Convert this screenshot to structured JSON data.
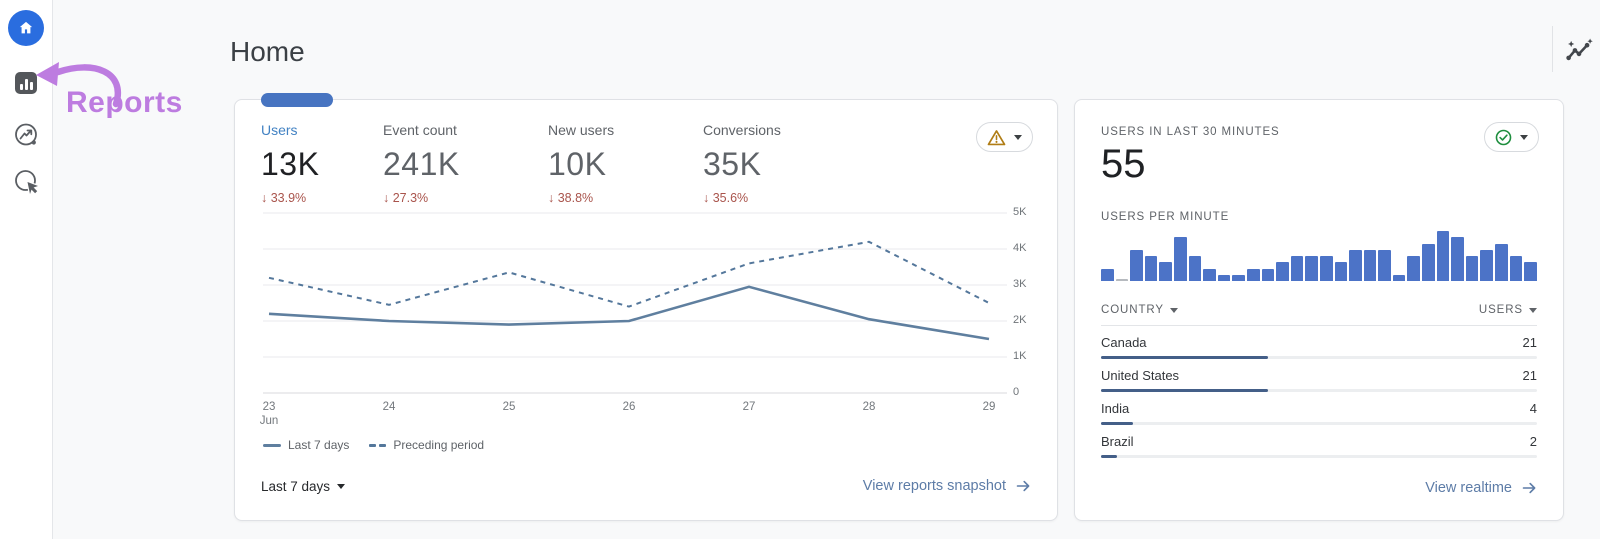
{
  "page": {
    "title": "Home"
  },
  "annotation": {
    "label": "Reports",
    "color": "#bd7ce0",
    "arrow_icon": "curved-arrow-icon"
  },
  "sidebar": {
    "items": [
      {
        "icon": "home-icon",
        "selected": true
      },
      {
        "icon": "reports-bar-chart-icon",
        "selected": false
      },
      {
        "icon": "explore-icon",
        "selected": false
      },
      {
        "icon": "advertising-icon",
        "selected": false
      }
    ]
  },
  "header": {
    "insights_icon": "insights-sparkline-icon"
  },
  "overview_card": {
    "metrics": [
      {
        "label": "Users",
        "value": "13K",
        "delta": "33.9%",
        "direction": "down",
        "selected": true
      },
      {
        "label": "Event count",
        "value": "241K",
        "delta": "27.3%",
        "direction": "down",
        "selected": false
      },
      {
        "label": "New users",
        "value": "10K",
        "delta": "38.8%",
        "direction": "down",
        "selected": false
      },
      {
        "label": "Conversions",
        "value": "35K",
        "delta": "35.6%",
        "direction": "down",
        "selected": false
      }
    ],
    "status_pill": {
      "icon": "warning-triangle-icon",
      "color": "#b07d15"
    },
    "legend": [
      {
        "label": "Last 7 days",
        "style": "solid"
      },
      {
        "label": "Preceding period",
        "style": "dashed"
      }
    ],
    "date_range_label": "Last 7 days",
    "link_label": "View reports snapshot",
    "link_icon": "arrow-forward-icon"
  },
  "realtime_card": {
    "title": "USERS IN LAST 30 MINUTES",
    "value": "55",
    "status_pill": {
      "icon": "check-circle-icon",
      "color": "#1e8e3e"
    },
    "bar_section_title": "USERS PER MINUTE",
    "table": {
      "columns": [
        "COUNTRY",
        "USERS"
      ],
      "rows": [
        {
          "country": "Canada",
          "users": 21
        },
        {
          "country": "United States",
          "users": 21
        },
        {
          "country": "India",
          "users": 4
        },
        {
          "country": "Brazil",
          "users": 2
        }
      ]
    },
    "link_label": "View realtime",
    "link_icon": "arrow-forward-icon"
  },
  "chart_data": [
    {
      "id": "users-trend",
      "type": "line",
      "title": "Users trend (last 7 days vs preceding period)",
      "x": [
        "23",
        "24",
        "25",
        "26",
        "27",
        "28",
        "29"
      ],
      "x_sublabel": "Jun",
      "series": [
        {
          "name": "Last 7 days",
          "style": "solid",
          "values": [
            2200,
            2000,
            1900,
            2000,
            2950,
            2050,
            1500
          ]
        },
        {
          "name": "Preceding period",
          "style": "dashed",
          "values": [
            3200,
            2450,
            3350,
            2400,
            3600,
            4200,
            2500
          ]
        }
      ],
      "ylim": [
        0,
        5000
      ],
      "yticks": [
        5000,
        4000,
        3000,
        2000,
        1000,
        0
      ],
      "ytick_labels": [
        "5K",
        "4K",
        "3K",
        "2K",
        "1K",
        "0"
      ],
      "grid": true,
      "legend_position": "bottom",
      "line_colors": {
        "solid": "#5f7f9f",
        "dashed": "#54779b"
      }
    },
    {
      "id": "users-per-minute",
      "type": "bar",
      "title": "Users per minute (last 30 minutes)",
      "values": [
        2,
        0,
        5,
        4,
        3,
        7,
        4,
        2,
        1,
        1,
        2,
        2,
        3,
        4,
        4,
        4,
        3,
        5,
        5,
        5,
        1,
        4,
        6,
        8,
        7,
        4,
        5,
        6,
        4,
        3
      ],
      "ylim": [
        0,
        8
      ],
      "bar_color": "#4c73c7"
    }
  ]
}
